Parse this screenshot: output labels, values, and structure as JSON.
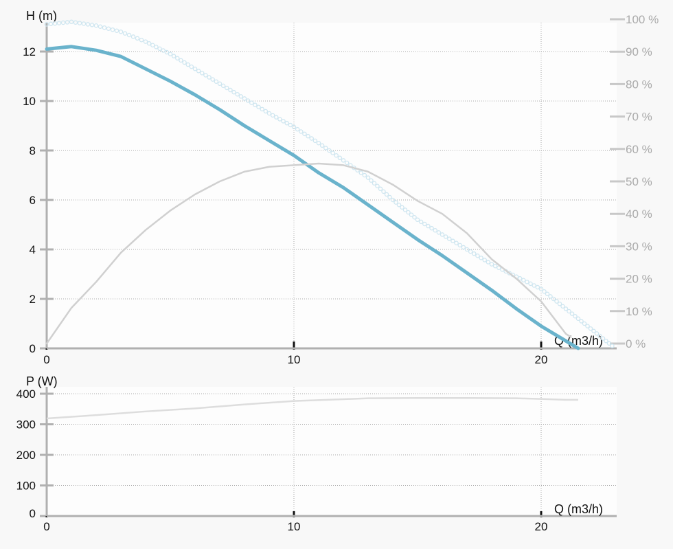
{
  "chart_data": [
    {
      "type": "line",
      "xlabel": "Q (m3/h)",
      "ylabel": "H (m)",
      "y2label": "",
      "xlim": [
        0,
        23
      ],
      "ylim": [
        0,
        13.2
      ],
      "y2lim": [
        0,
        100
      ],
      "xticks": [
        "0",
        "10",
        "20"
      ],
      "yticks": [
        "0",
        "2",
        "4",
        "6",
        "8",
        "10",
        "12"
      ],
      "y2ticks": [
        "0 %",
        "10 %",
        "20 %",
        "30 %",
        "40 %",
        "50 %",
        "60 %",
        "70 %",
        "80 %",
        "90 %",
        "100 %"
      ],
      "grid": true,
      "series": [
        {
          "axis": "left",
          "color": "#6ab3cc",
          "style": "solid-thick",
          "x": [
            0,
            1,
            2,
            3,
            4,
            5,
            6,
            7,
            8,
            9,
            10,
            11,
            12,
            13,
            14,
            15,
            16,
            17,
            18,
            19,
            20,
            21,
            21.5
          ],
          "y": [
            12.1,
            12.2,
            12.05,
            11.8,
            11.3,
            10.8,
            10.25,
            9.65,
            9.0,
            8.4,
            7.8,
            7.1,
            6.5,
            5.8,
            5.1,
            4.4,
            3.75,
            3.05,
            2.35,
            1.6,
            0.9,
            0.3,
            0
          ]
        },
        {
          "axis": "left",
          "color": "#cfe6f0",
          "style": "circles",
          "x": [
            0,
            1,
            2,
            3,
            4,
            5,
            6,
            7,
            8,
            9,
            10,
            11,
            12,
            13,
            14,
            15,
            16,
            17,
            18,
            19,
            20,
            21,
            22,
            23
          ],
          "y": [
            13.1,
            13.2,
            13.05,
            12.8,
            12.4,
            11.9,
            11.3,
            10.7,
            10.1,
            9.5,
            8.95,
            8.3,
            7.6,
            6.9,
            6.0,
            5.2,
            4.6,
            4.0,
            3.4,
            2.9,
            2.4,
            1.6,
            0.8,
            0
          ]
        },
        {
          "axis": "right",
          "color": "#d0d0d0",
          "style": "solid",
          "x": [
            0,
            1,
            2,
            3,
            4,
            5,
            6,
            7,
            8,
            9,
            10,
            11,
            12,
            13,
            14,
            15,
            16,
            17,
            18,
            19,
            20,
            21,
            21.2
          ],
          "y": [
            0,
            11,
            19,
            28,
            35,
            41,
            46,
            50,
            53,
            54.5,
            55,
            55.5,
            55,
            53,
            49,
            44,
            40,
            34,
            26,
            20,
            13,
            3,
            2
          ]
        }
      ]
    },
    {
      "type": "line",
      "xlabel": "Q (m3/h)",
      "ylabel": "P (W)",
      "xlim": [
        0,
        23
      ],
      "ylim": [
        0,
        420
      ],
      "xticks": [
        "0",
        "10",
        "20"
      ],
      "yticks": [
        "0",
        "100",
        "200",
        "300",
        "400"
      ],
      "grid": true,
      "series": [
        {
          "color": "#dddddd",
          "style": "solid",
          "x": [
            0,
            2,
            4,
            6,
            8,
            10,
            12,
            13,
            15,
            17,
            19,
            20,
            21,
            21.5
          ],
          "y": [
            319,
            330,
            342,
            352,
            365,
            376,
            382,
            385,
            386,
            386,
            385,
            383,
            380,
            380
          ]
        }
      ]
    }
  ]
}
